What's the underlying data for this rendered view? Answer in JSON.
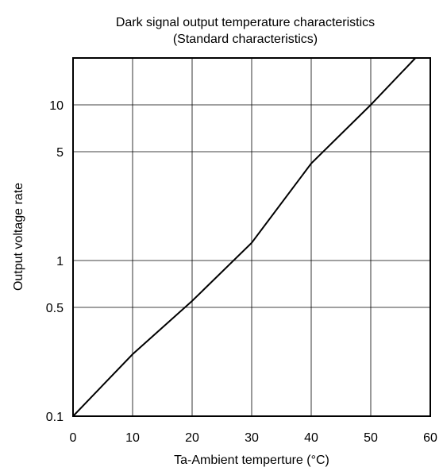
{
  "chart_data": {
    "type": "line",
    "title": "Dark signal output temperature characteristics",
    "subtitle": "(Standard characteristics)",
    "xlabel": "Ta-Ambient temperture (°C)",
    "ylabel": "Output voltage rate",
    "xlim": [
      0,
      60
    ],
    "ylim": [
      0.1,
      20
    ],
    "yscale": "log",
    "grid": true,
    "x_ticks": [
      0,
      10,
      20,
      30,
      40,
      50,
      60
    ],
    "x_tick_labels": [
      "0",
      "10",
      "20",
      "30",
      "40",
      "50",
      "60"
    ],
    "y_ticks": [
      0.1,
      0.5,
      1,
      5,
      10
    ],
    "y_tick_labels": [
      "0.1",
      "0.5",
      "1",
      "5",
      "10"
    ],
    "series": [
      {
        "x": [
          0,
          10,
          20,
          30,
          40,
          50,
          57.5
        ],
        "y": [
          0.1,
          0.25,
          0.55,
          1.3,
          4.2,
          10,
          20
        ]
      }
    ],
    "colors": {
      "line": "#000000",
      "grid": "#000000",
      "background": "#ffffff"
    }
  }
}
